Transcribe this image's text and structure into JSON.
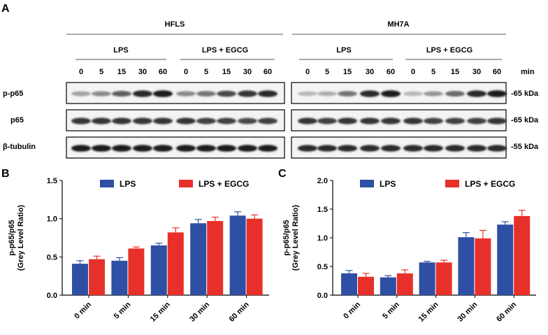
{
  "panel_a": {
    "letter": "A",
    "cell_lines": [
      {
        "name": "HFLS"
      },
      {
        "name": "MH7A"
      }
    ],
    "treatment_groups": [
      "LPS",
      "LPS + EGCG"
    ],
    "time_points": [
      "0",
      "5",
      "15",
      "30",
      "60"
    ],
    "time_unit": "min",
    "blot_rows": [
      {
        "label": "p-p65",
        "size": "-65 kDa"
      },
      {
        "label": "p65",
        "size": "-65 kDa"
      },
      {
        "label": "β-tubulin",
        "size": "-55 kDa"
      }
    ]
  },
  "chart_data": [
    {
      "panel": "B",
      "type": "bar",
      "title": "",
      "xlabel": "",
      "ylabel": "p-p65/p65\n(Grey Level Ratio)",
      "ylabel_lines": [
        "p-p65/p65",
        "(Grey Level Ratio)"
      ],
      "ylim": [
        0,
        1.5
      ],
      "yticks": [
        "0.0",
        "0.5",
        "1.0",
        "1.5"
      ],
      "legend_position": "top",
      "categories": [
        "0 min",
        "5 min",
        "15 min",
        "30 min",
        "60 min"
      ],
      "series": [
        {
          "name": "LPS",
          "color": "#2E4FA3",
          "values": [
            0.41,
            0.45,
            0.65,
            0.94,
            1.04
          ],
          "errors": [
            0.04,
            0.04,
            0.03,
            0.05,
            0.05
          ]
        },
        {
          "name": "LPS + EGCG",
          "color": "#E8302A",
          "values": [
            0.47,
            0.61,
            0.82,
            0.97,
            1.0
          ],
          "errors": [
            0.04,
            0.02,
            0.06,
            0.05,
            0.05
          ]
        }
      ]
    },
    {
      "panel": "C",
      "type": "bar",
      "title": "",
      "xlabel": "",
      "ylabel": "p-p65/p65\n(Grey Level Ratio)",
      "ylabel_lines": [
        "p-p65/p65",
        "(Grey Level Ratio)"
      ],
      "ylim": [
        0,
        2.0
      ],
      "yticks": [
        "0.0",
        "0.5",
        "1.0",
        "1.5",
        "2.0"
      ],
      "legend_position": "top",
      "categories": [
        "0 min",
        "5 min",
        "15 min",
        "30 min",
        "60 min"
      ],
      "series": [
        {
          "name": "LPS",
          "color": "#2E4FA3",
          "values": [
            0.38,
            0.31,
            0.57,
            1.01,
            1.23
          ],
          "errors": [
            0.05,
            0.03,
            0.02,
            0.08,
            0.05
          ]
        },
        {
          "name": "LPS + EGCG",
          "color": "#E8302A",
          "values": [
            0.32,
            0.38,
            0.57,
            0.99,
            1.38
          ],
          "errors": [
            0.06,
            0.06,
            0.04,
            0.14,
            0.1
          ]
        }
      ]
    }
  ]
}
